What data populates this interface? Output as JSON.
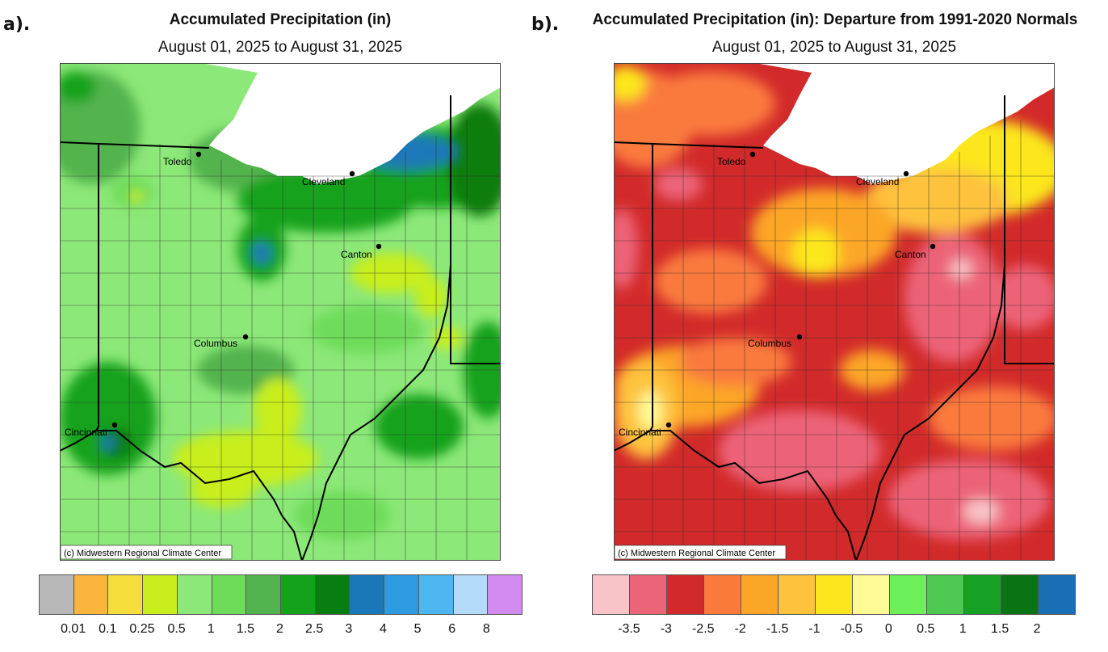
{
  "panel_a": {
    "letter": "a).",
    "title": "Accumulated Precipitation (in)",
    "subtitle": "August 01, 2025 to August 31, 2025",
    "credit": "(c) Midwestern Regional Climate Center",
    "cities": [
      {
        "name": "Toledo"
      },
      {
        "name": "Cleveland"
      },
      {
        "name": "Canton"
      },
      {
        "name": "Columbus"
      },
      {
        "name": "Cincinnati"
      }
    ],
    "legend": {
      "colors": [
        "#b8b8b8",
        "#fbb43c",
        "#f5de3c",
        "#c8ee1e",
        "#8ce878",
        "#6edc5a",
        "#52b44e",
        "#14a21c",
        "#0a7d10",
        "#1a78b8",
        "#2e9be0",
        "#4eb6f0",
        "#b4dcfa",
        "#d28cf0"
      ],
      "labels": [
        "0.01",
        "0.1",
        "0.25",
        "0.5",
        "1",
        "1.5",
        "2",
        "2.5",
        "3",
        "4",
        "5",
        "6",
        "8"
      ]
    }
  },
  "panel_b": {
    "letter": "b).",
    "title": "Accumulated Precipitation (in): Departure from 1991-2020 Normals",
    "subtitle": "August 01, 2025 to August 31, 2025",
    "credit": "(c) Midwestern Regional Climate Center",
    "cities": [
      {
        "name": "Toledo"
      },
      {
        "name": "Cleveland"
      },
      {
        "name": "Canton"
      },
      {
        "name": "Columbus"
      },
      {
        "name": "Cincinnati"
      }
    ],
    "legend": {
      "colors": [
        "#f8c4c8",
        "#ec6478",
        "#d22a2a",
        "#fa7a3c",
        "#fca628",
        "#fec23c",
        "#fce61e",
        "#fefa96",
        "#6ef05a",
        "#4ec850",
        "#16a024",
        "#0a7414",
        "#1a6eb4"
      ],
      "labels": [
        "-3.5",
        "-3",
        "-2.5",
        "-2",
        "-1.5",
        "-1",
        "-0.5",
        "0",
        "0.5",
        "1",
        "1.5",
        "2"
      ]
    }
  }
}
